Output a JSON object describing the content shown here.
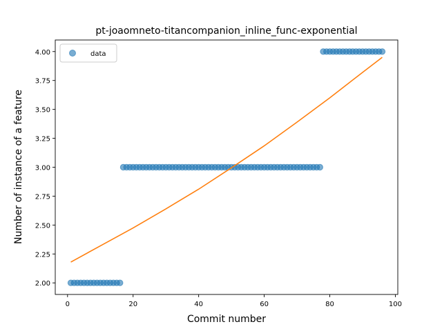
{
  "chart_data": {
    "type": "scatter",
    "title": "pt-joaomneto-titancompanion_inline_func-exponential",
    "xlabel": "Commit number",
    "ylabel": "Number of instance of a feature",
    "xlim": [
      -3.75,
      100.75
    ],
    "ylim": [
      1.9,
      4.1
    ],
    "xticks": [
      0,
      20,
      40,
      60,
      80,
      100
    ],
    "xtick_labels": [
      "0",
      "20",
      "40",
      "60",
      "80",
      "100"
    ],
    "yticks": [
      2.0,
      2.25,
      2.5,
      2.75,
      3.0,
      3.25,
      3.5,
      3.75,
      4.0
    ],
    "ytick_labels": [
      "2.00",
      "2.25",
      "2.50",
      "2.75",
      "3.00",
      "3.25",
      "3.50",
      "3.75",
      "4.00"
    ],
    "legend": {
      "position": "top-left",
      "entries": [
        "data"
      ]
    },
    "grid": false,
    "series": [
      {
        "name": "data",
        "kind": "scatter",
        "color": "#1f77b4",
        "x": [
          1,
          2,
          3,
          4,
          5,
          6,
          7,
          8,
          9,
          10,
          11,
          12,
          13,
          14,
          15,
          16,
          17,
          18,
          19,
          20,
          21,
          22,
          23,
          24,
          25,
          26,
          27,
          28,
          29,
          30,
          31,
          32,
          33,
          34,
          35,
          36,
          37,
          38,
          39,
          40,
          41,
          42,
          43,
          44,
          45,
          46,
          47,
          48,
          49,
          50,
          51,
          52,
          53,
          54,
          55,
          56,
          57,
          58,
          59,
          60,
          61,
          62,
          63,
          64,
          65,
          66,
          67,
          68,
          69,
          70,
          71,
          72,
          73,
          74,
          75,
          76,
          77,
          78,
          79,
          80,
          81,
          82,
          83,
          84,
          85,
          86,
          87,
          88,
          89,
          90,
          91,
          92,
          93,
          94,
          95,
          96
        ],
        "y": [
          2,
          2,
          2,
          2,
          2,
          2,
          2,
          2,
          2,
          2,
          2,
          2,
          2,
          2,
          2,
          2,
          3,
          3,
          3,
          3,
          3,
          3,
          3,
          3,
          3,
          3,
          3,
          3,
          3,
          3,
          3,
          3,
          3,
          3,
          3,
          3,
          3,
          3,
          3,
          3,
          3,
          3,
          3,
          3,
          3,
          3,
          3,
          3,
          3,
          3,
          3,
          3,
          3,
          3,
          3,
          3,
          3,
          3,
          3,
          3,
          3,
          3,
          3,
          3,
          3,
          3,
          3,
          3,
          3,
          3,
          3,
          3,
          3,
          3,
          3,
          3,
          3,
          4,
          4,
          4,
          4,
          4,
          4,
          4,
          4,
          4,
          4,
          4,
          4,
          4,
          4,
          4,
          4,
          4,
          4,
          4
        ]
      },
      {
        "name": "",
        "kind": "line",
        "color": "#ff7f0e",
        "x": [
          1,
          10,
          20,
          30,
          40,
          50,
          60,
          70,
          80,
          90,
          96
        ],
        "y": [
          2.18,
          2.32,
          2.475,
          2.64,
          2.81,
          2.995,
          3.185,
          3.39,
          3.6,
          3.82,
          3.95
        ]
      }
    ]
  }
}
